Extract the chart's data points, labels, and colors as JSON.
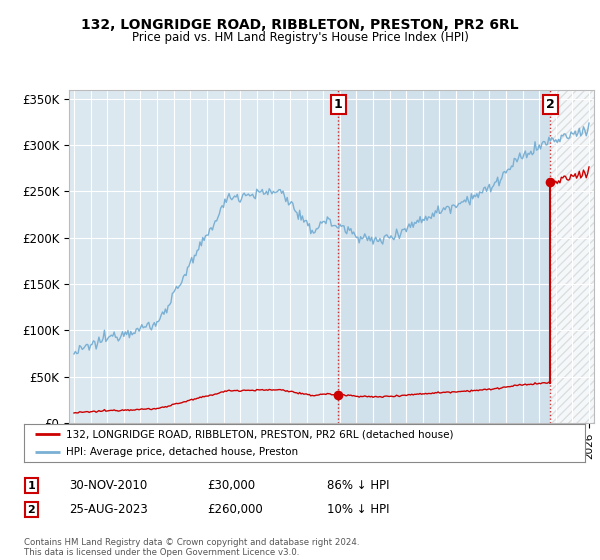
{
  "title1": "132, LONGRIDGE ROAD, RIBBLETON, PRESTON, PR2 6RL",
  "title2": "Price paid vs. HM Land Registry's House Price Index (HPI)",
  "ylabel_ticks": [
    "£0",
    "£50K",
    "£100K",
    "£150K",
    "£200K",
    "£250K",
    "£300K",
    "£350K"
  ],
  "ytick_values": [
    0,
    50000,
    100000,
    150000,
    200000,
    250000,
    300000,
    350000
  ],
  "ylim": [
    0,
    360000
  ],
  "hpi_color": "#7ab0d4",
  "price_color": "#cc0000",
  "bg_color": "#dce8f0",
  "shaded_color": "#c8dcea",
  "grid_color": "#ffffff",
  "legend_label1": "132, LONGRIDGE ROAD, RIBBLETON, PRESTON, PR2 6RL (detached house)",
  "legend_label2": "HPI: Average price, detached house, Preston",
  "point1_year": 2010.917,
  "point1_price": 30000,
  "point1_pct": "86% ↓ HPI",
  "point1_date": "30-NOV-2010",
  "point2_year": 2023.667,
  "point2_price": 260000,
  "point2_pct": "10% ↓ HPI",
  "point2_date": "25-AUG-2023",
  "footer": "Contains HM Land Registry data © Crown copyright and database right 2024.\nThis data is licensed under the Open Government Licence v3.0.",
  "annotation_box_color": "#cc0000",
  "xlim_min": 1994.7,
  "xlim_max": 2026.3
}
